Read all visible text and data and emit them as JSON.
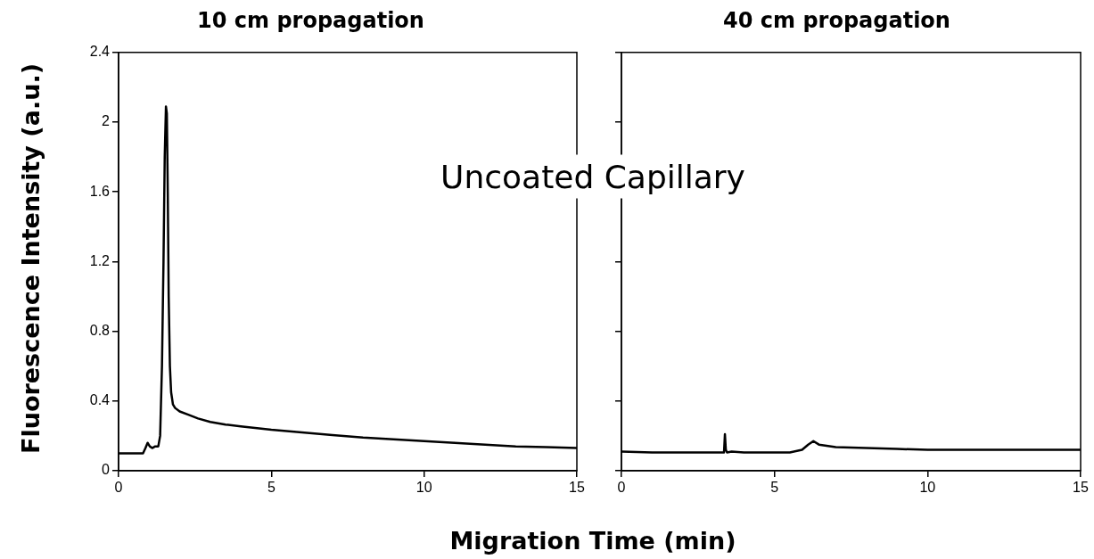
{
  "chart_data": [
    {
      "type": "line",
      "title": "10 cm propagation",
      "xlabel": "Migration Time (min)",
      "ylabel": "Fluorescence Intensity (a.u.)",
      "annotations": [
        "Uncoated Capillary"
      ],
      "marker": "none",
      "line_style": "solid",
      "grid": false,
      "legend": false,
      "x": [
        0,
        0.4,
        0.8,
        0.88,
        0.95,
        1.02,
        1.1,
        1.2,
        1.3,
        1.36,
        1.42,
        1.47,
        1.51,
        1.55,
        1.58,
        1.61,
        1.64,
        1.68,
        1.72,
        1.78,
        1.85,
        2.0,
        2.3,
        2.6,
        3,
        3.5,
        4,
        5,
        6,
        7,
        8,
        9,
        10,
        11,
        12,
        13,
        14,
        15
      ],
      "series": [
        {
          "color": "#000000",
          "values": [
            0.1,
            0.1,
            0.1,
            0.13,
            0.16,
            0.14,
            0.13,
            0.14,
            0.14,
            0.2,
            0.6,
            1.2,
            1.8,
            2.09,
            2.05,
            1.6,
            1.0,
            0.6,
            0.45,
            0.38,
            0.36,
            0.34,
            0.32,
            0.3,
            0.28,
            0.265,
            0.255,
            0.235,
            0.22,
            0.205,
            0.19,
            0.18,
            0.17,
            0.16,
            0.15,
            0.14,
            0.135,
            0.13
          ]
        }
      ],
      "xlim": [
        0,
        15
      ],
      "xticks": [
        0,
        5,
        10,
        15
      ],
      "ylim": [
        0,
        2.4
      ],
      "yticks": [
        0,
        0.4,
        0.8,
        1.2,
        1.6,
        2,
        2.4
      ]
    },
    {
      "type": "line",
      "title": "40 cm propagation",
      "marker": "none",
      "line_style": "solid",
      "grid": false,
      "legend": false,
      "tick_labels": "x",
      "x": [
        0,
        1,
        2,
        3,
        3.35,
        3.38,
        3.41,
        3.45,
        3.6,
        4,
        5,
        5.5,
        5.9,
        6.1,
        6.27,
        6.45,
        7,
        8,
        9,
        10,
        11,
        12,
        13,
        14,
        15
      ],
      "series": [
        {
          "color": "#000000",
          "values": [
            0.11,
            0.105,
            0.105,
            0.105,
            0.105,
            0.21,
            0.12,
            0.105,
            0.11,
            0.105,
            0.105,
            0.105,
            0.12,
            0.15,
            0.17,
            0.15,
            0.135,
            0.13,
            0.125,
            0.12,
            0.12,
            0.12,
            0.12,
            0.12,
            0.12
          ]
        }
      ],
      "xlim": [
        0,
        15
      ],
      "xticks": [
        0,
        5,
        10,
        15
      ],
      "ylim": [
        0,
        2.4
      ],
      "yticks": [
        0,
        0.4,
        0.8,
        1.2,
        1.6,
        2,
        2.4
      ]
    }
  ]
}
